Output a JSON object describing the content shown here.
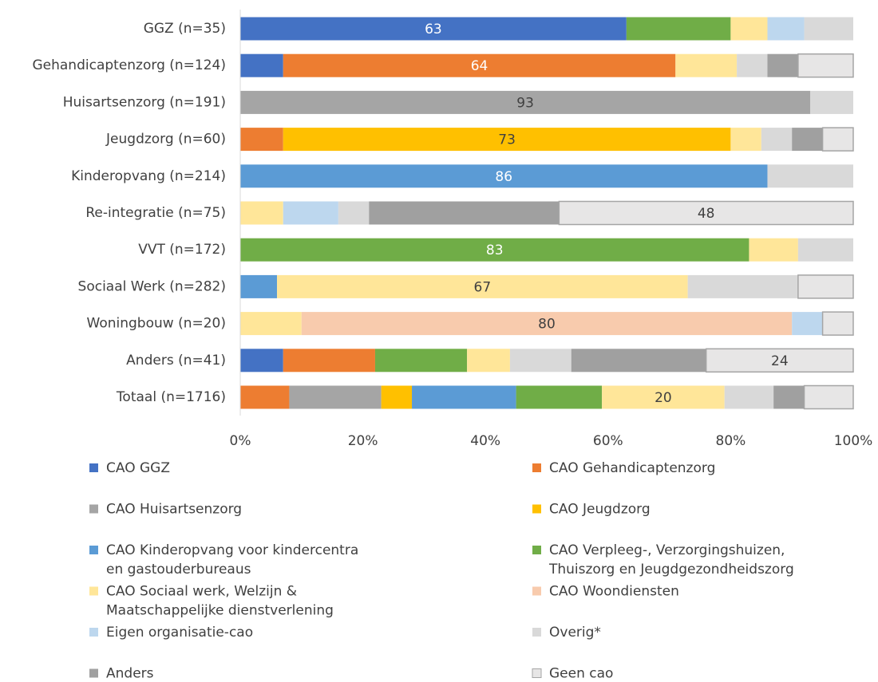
{
  "chart_data": {
    "type": "stacked_bar_horizontal",
    "categories": [
      "GGZ (n=35)",
      "Gehandicaptenzorg (n=124)",
      "Huisartsenzorg (n=191)",
      "Jeugdzorg (n=60)",
      "Kinderopvang (n=214)",
      "Re-integratie (n=75)",
      "VVT (n=172)",
      "Sociaal Werk (n=282)",
      "Woningbouw (n=20)",
      "Anders (n=41)",
      "Totaal (n=1716)"
    ],
    "series": [
      {
        "name": "CAO GGZ",
        "color": "#4472c4",
        "values": [
          63,
          7,
          0,
          0,
          0,
          0,
          0,
          0,
          0,
          7,
          0
        ]
      },
      {
        "name": "CAO Gehandicaptenzorg",
        "color": "#ed7d31",
        "values": [
          0,
          64,
          0,
          7,
          0,
          0,
          0,
          0,
          0,
          15,
          8
        ]
      },
      {
        "name": "CAO Huisartsenzorg",
        "color": "#a5a5a5",
        "values": [
          0,
          0,
          93,
          0,
          0,
          0,
          0,
          0,
          0,
          0,
          15
        ]
      },
      {
        "name": "CAO Jeugdzorg",
        "color": "#ffc000",
        "values": [
          0,
          0,
          0,
          73,
          0,
          0,
          0,
          0,
          0,
          0,
          5
        ]
      },
      {
        "name": "CAO Kinderopvang voor kindercentra en gastouderbureaus",
        "color": "#5b9bd5",
        "values": [
          0,
          0,
          0,
          0,
          86,
          0,
          0,
          6,
          0,
          0,
          17
        ]
      },
      {
        "name": "CAO Verpleeg-, Verzorgingshuizen, Thuiszorg en Jeugdgezondheidszorg",
        "color": "#70ad47",
        "values": [
          17,
          0,
          0,
          0,
          0,
          0,
          83,
          0,
          0,
          15,
          14
        ]
      },
      {
        "name": "CAO Sociaal werk, Welzijn & Maatschappelijke dienstverlening",
        "color": "#ffe699",
        "values": [
          6,
          10,
          0,
          5,
          0,
          7,
          8,
          67,
          10,
          7,
          20
        ]
      },
      {
        "name": "CAO Woondiensten",
        "color": "#f8cbad",
        "values": [
          0,
          0,
          0,
          0,
          0,
          0,
          0,
          0,
          80,
          0,
          0
        ]
      },
      {
        "name": "Eigen organisatie-cao",
        "color": "#bdd7ee",
        "values": [
          6,
          0,
          0,
          0,
          0,
          9,
          0,
          0,
          5,
          0,
          0
        ]
      },
      {
        "name": "Overig*",
        "color": "#d9d9d9",
        "values": [
          8,
          5,
          7,
          5,
          14,
          5,
          9,
          18,
          0,
          10,
          8
        ]
      },
      {
        "name": "Anders",
        "color": "#a0a0a0",
        "values": [
          0,
          5,
          0,
          5,
          0,
          31,
          0,
          0,
          0,
          22,
          5
        ]
      },
      {
        "name": "Geen cao",
        "color": "#e7e6e6",
        "values": [
          0,
          9,
          0,
          5,
          0,
          48,
          0,
          9,
          5,
          24,
          8
        ]
      }
    ],
    "xlim": [
      0,
      100
    ],
    "xticks": [
      {
        "value": 0,
        "label": "0%"
      },
      {
        "value": 20,
        "label": "20%"
      },
      {
        "value": 40,
        "label": "40%"
      },
      {
        "value": 60,
        "label": "60%"
      },
      {
        "value": 80,
        "label": "80%"
      },
      {
        "value": 100,
        "label": "100%"
      }
    ]
  }
}
